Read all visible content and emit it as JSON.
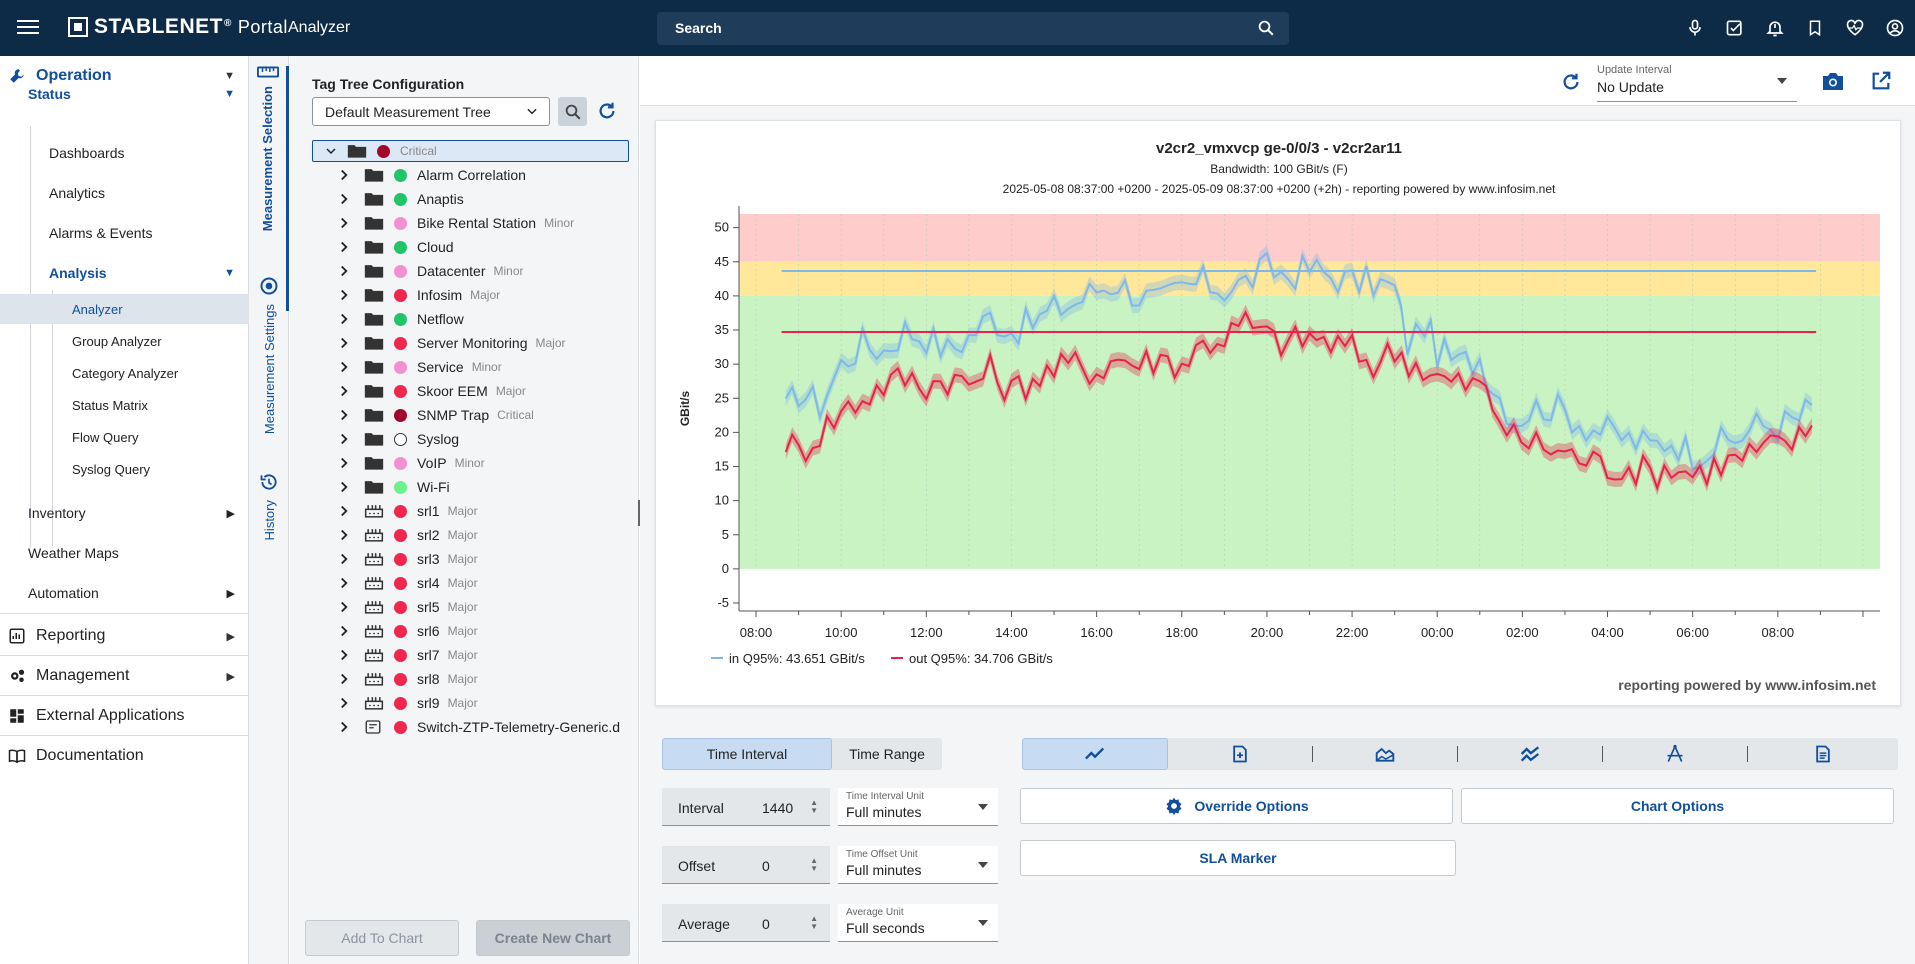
{
  "header": {
    "brand": "STABLENET",
    "brand_mark": "®",
    "portal": "Portal",
    "app": "Analyzer",
    "search_placeholder": "Search"
  },
  "nav": {
    "operation": "Operation",
    "status": "Status",
    "status_items": [
      "Dashboards",
      "Analytics",
      "Alarms & Events"
    ],
    "analysis": "Analysis",
    "analysis_items": [
      "Analyzer",
      "Group Analyzer",
      "Category Analyzer",
      "Status Matrix",
      "Flow Query",
      "Syslog Query"
    ],
    "inventory": "Inventory",
    "weather_maps": "Weather Maps",
    "automation": "Automation",
    "reporting": "Reporting",
    "management": "Management",
    "external": "External Applications",
    "documentation": "Documentation"
  },
  "vtabs": [
    "Measurement Selection",
    "Measurement Settings",
    "History"
  ],
  "tree": {
    "title": "Tag Tree Configuration",
    "selected_tree": "Default Measurement Tree",
    "root": {
      "label": "Critical",
      "color": "#a3062c"
    },
    "items": [
      {
        "label": "Alarm Correlation",
        "sev": "",
        "color": "#22c46a",
        "icon": "folder"
      },
      {
        "label": "Anaptis",
        "sev": "",
        "color": "#22c46a",
        "icon": "folder"
      },
      {
        "label": "Bike Rental Station",
        "sev": "Minor",
        "color": "#f58fd2",
        "icon": "folder"
      },
      {
        "label": "Cloud",
        "sev": "",
        "color": "#22c46a",
        "icon": "folder"
      },
      {
        "label": "Datacenter",
        "sev": "Minor",
        "color": "#f58fd2",
        "icon": "folder"
      },
      {
        "label": "Infosim",
        "sev": "Major",
        "color": "#f0264e",
        "icon": "folder"
      },
      {
        "label": "Netflow",
        "sev": "",
        "color": "#22c46a",
        "icon": "folder"
      },
      {
        "label": "Server Monitoring",
        "sev": "Major",
        "color": "#f0264e",
        "icon": "folder"
      },
      {
        "label": "Service",
        "sev": "Minor",
        "color": "#f58fd2",
        "icon": "folder"
      },
      {
        "label": "Skoor EEM",
        "sev": "Major",
        "color": "#f0264e",
        "icon": "folder"
      },
      {
        "label": "SNMP Trap",
        "sev": "Critical",
        "color": "#a3062c",
        "icon": "folder"
      },
      {
        "label": "Syslog",
        "sev": "",
        "color": "#ffffff",
        "icon": "folder"
      },
      {
        "label": "VoIP",
        "sev": "Minor",
        "color": "#f58fd2",
        "icon": "folder"
      },
      {
        "label": "Wi-Fi",
        "sev": "",
        "color": "#6ff08e",
        "icon": "folder"
      },
      {
        "label": "srl1",
        "sev": "Major",
        "color": "#f0264e",
        "icon": "device"
      },
      {
        "label": "srl2",
        "sev": "Major",
        "color": "#f0264e",
        "icon": "device"
      },
      {
        "label": "srl3",
        "sev": "Major",
        "color": "#f0264e",
        "icon": "device"
      },
      {
        "label": "srl4",
        "sev": "Major",
        "color": "#f0264e",
        "icon": "device"
      },
      {
        "label": "srl5",
        "sev": "Major",
        "color": "#f0264e",
        "icon": "device"
      },
      {
        "label": "srl6",
        "sev": "Major",
        "color": "#f0264e",
        "icon": "device"
      },
      {
        "label": "srl7",
        "sev": "Major",
        "color": "#f0264e",
        "icon": "device"
      },
      {
        "label": "srl8",
        "sev": "Major",
        "color": "#f0264e",
        "icon": "device"
      },
      {
        "label": "srl9",
        "sev": "Major",
        "color": "#f0264e",
        "icon": "device"
      },
      {
        "label": "Switch-ZTP-Telemetry-Generic.d",
        "sev": "",
        "color": "#f0264e",
        "icon": "file"
      }
    ],
    "add_to_chart": "Add To Chart",
    "create_new_chart": "Create New Chart"
  },
  "toolbar": {
    "update_label": "Update Interval",
    "update_value": "No Update"
  },
  "chart_data": {
    "type": "line",
    "title": "v2cr2_vmxvcp ge-0/0/3 - v2cr2ar11",
    "subtitle": "Bandwidth: 100 GBit/s (F)",
    "range_text": "2025-05-08 08:37:00 +0200 - 2025-05-09 08:37:00 +0200 (+2h) - reporting powered by www.infosim.net",
    "ylabel": "GBit/s",
    "ylim": [
      -5,
      52
    ],
    "yticks": [
      "50",
      "45",
      "40",
      "35",
      "30",
      "25",
      "20",
      "15",
      "10",
      "5",
      "0",
      "-5"
    ],
    "xticks": [
      "08:00",
      "10:00",
      "12:00",
      "14:00",
      "16:00",
      "18:00",
      "20:00",
      "22:00",
      "00:00",
      "02:00",
      "04:00",
      "06:00",
      "08:00"
    ],
    "zones": [
      {
        "from": 45,
        "to": 52,
        "color": "#ffcccc"
      },
      {
        "from": 40,
        "to": 45,
        "color": "#ffe89a"
      },
      {
        "from": 0,
        "to": 40,
        "color": "#c9f3c2"
      }
    ],
    "series": [
      {
        "name": "in Q95%: 43.651 GBit/s",
        "color": "#7fb8ea",
        "q95": 43.651,
        "anchors": [
          [
            8.7,
            23
          ],
          [
            9.0,
            26
          ],
          [
            9.5,
            24
          ],
          [
            10.0,
            30
          ],
          [
            10.5,
            33
          ],
          [
            11.0,
            32
          ],
          [
            11.5,
            35
          ],
          [
            12.0,
            34
          ],
          [
            12.5,
            32
          ],
          [
            13.0,
            34
          ],
          [
            13.5,
            37
          ],
          [
            14.0,
            35
          ],
          [
            14.5,
            36
          ],
          [
            15.0,
            38
          ],
          [
            15.5,
            39
          ],
          [
            16.0,
            41
          ],
          [
            16.5,
            42
          ],
          [
            17.0,
            40
          ],
          [
            17.5,
            39
          ],
          [
            18.0,
            41
          ],
          [
            18.5,
            42
          ],
          [
            19.0,
            41
          ],
          [
            19.5,
            42
          ],
          [
            20.0,
            44
          ],
          [
            20.5,
            43
          ],
          [
            21.0,
            44
          ],
          [
            21.5,
            43
          ],
          [
            22.0,
            42
          ],
          [
            22.5,
            42
          ],
          [
            23.0,
            41
          ],
          [
            23.3,
            33
          ],
          [
            23.7,
            36
          ],
          [
            24.0,
            32
          ],
          [
            24.5,
            30
          ],
          [
            25.0,
            31
          ],
          [
            25.3,
            27
          ],
          [
            25.8,
            22
          ],
          [
            26.5,
            24
          ],
          [
            27.0,
            23
          ],
          [
            27.5,
            21
          ],
          [
            28.0,
            20
          ],
          [
            28.5,
            19
          ],
          [
            29.0,
            18
          ],
          [
            29.5,
            19
          ],
          [
            30.0,
            17
          ],
          [
            30.5,
            18
          ],
          [
            31.0,
            19
          ],
          [
            31.5,
            21
          ],
          [
            32.0,
            21
          ],
          [
            32.5,
            22
          ],
          [
            32.8,
            24
          ]
        ]
      },
      {
        "name": "out Q95%: 34.706 GBit/s",
        "color": "#e8224a",
        "q95": 34.706,
        "anchors": [
          [
            8.7,
            19
          ],
          [
            9.0,
            17
          ],
          [
            9.5,
            20
          ],
          [
            10.0,
            23
          ],
          [
            10.5,
            25
          ],
          [
            11.0,
            27
          ],
          [
            11.5,
            28
          ],
          [
            12.0,
            27
          ],
          [
            12.5,
            28
          ],
          [
            13.0,
            27
          ],
          [
            13.5,
            29
          ],
          [
            14.0,
            26
          ],
          [
            14.5,
            28
          ],
          [
            15.0,
            29
          ],
          [
            15.5,
            30
          ],
          [
            16.0,
            29
          ],
          [
            16.5,
            31
          ],
          [
            17.0,
            30
          ],
          [
            17.5,
            31
          ],
          [
            18.0,
            30
          ],
          [
            18.5,
            33
          ],
          [
            19.0,
            34
          ],
          [
            19.5,
            36
          ],
          [
            20.0,
            34
          ],
          [
            20.5,
            33
          ],
          [
            21.0,
            34
          ],
          [
            21.5,
            33
          ],
          [
            22.0,
            32
          ],
          [
            22.5,
            30
          ],
          [
            23.0,
            32
          ],
          [
            23.5,
            30
          ],
          [
            24.0,
            28
          ],
          [
            24.5,
            27
          ],
          [
            25.0,
            27
          ],
          [
            25.3,
            24
          ],
          [
            25.8,
            19
          ],
          [
            26.5,
            18
          ],
          [
            27.0,
            17
          ],
          [
            27.5,
            16
          ],
          [
            28.0,
            15
          ],
          [
            28.5,
            15
          ],
          [
            29.0,
            14
          ],
          [
            29.5,
            15
          ],
          [
            30.0,
            14
          ],
          [
            30.5,
            15
          ],
          [
            31.0,
            16
          ],
          [
            31.5,
            17
          ],
          [
            32.0,
            18
          ],
          [
            32.5,
            19
          ],
          [
            32.8,
            21
          ]
        ]
      }
    ],
    "legend_position": "bottom-left",
    "footer": "reporting powered by www.infosim.net"
  },
  "controls": {
    "time_interval": "Time Interval",
    "time_range": "Time Range",
    "interval_label": "Interval",
    "interval_value": "1440",
    "interval_unit_label": "Time Interval Unit",
    "interval_unit_value": "Full minutes",
    "offset_label": "Offset",
    "offset_value": "0",
    "offset_unit_label": "Time Offset Unit",
    "offset_unit_value": "Full minutes",
    "average_label": "Average",
    "average_value": "0",
    "average_unit_label": "Average Unit",
    "average_unit_value": "Full seconds",
    "override_options": "Override Options",
    "chart_options": "Chart Options",
    "sla_marker": "SLA Marker"
  },
  "colors": {
    "topbar": "#0d2a47",
    "accent": "#114f9c",
    "selected_bg": "#dde4ec"
  }
}
